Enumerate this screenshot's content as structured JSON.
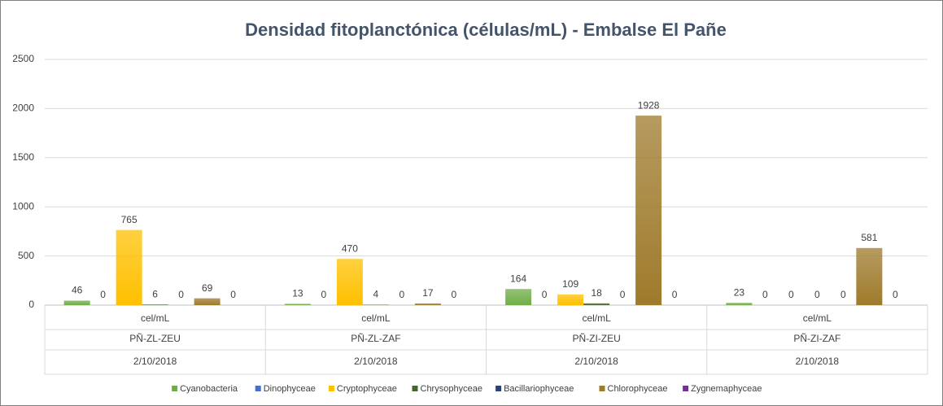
{
  "chart_data": {
    "type": "bar",
    "title": "Densidad fitoplanctónica (células/mL) - Embalse El  Pañe",
    "categories": [
      [
        "cel/mL",
        "PÑ-ZL-ZEU",
        "2/10/2018"
      ],
      [
        "cel/mL",
        "PÑ-ZL-ZAF",
        "2/10/2018"
      ],
      [
        "cel/mL",
        "PÑ-ZI-ZEU",
        "2/10/2018"
      ],
      [
        "cel/mL",
        "PÑ-ZI-ZAF",
        "2/10/2018"
      ]
    ],
    "series": [
      {
        "name": "Cyanobacteria",
        "color": "#70ad47",
        "values": [
          46,
          13,
          164,
          23
        ]
      },
      {
        "name": "Dinophyceae",
        "color": "#4472c4",
        "values": [
          0,
          0,
          0,
          0
        ]
      },
      {
        "name": "Cryptophyceae",
        "color": "#ffc000",
        "values": [
          765,
          470,
          109,
          0
        ]
      },
      {
        "name": "Chrysophyceae",
        "color": "#43682b",
        "values": [
          6,
          4,
          18,
          0
        ]
      },
      {
        "name": "Bacillariophyceae",
        "color": "#264478",
        "values": [
          0,
          0,
          0,
          0
        ]
      },
      {
        "name": "Chlorophyceae",
        "color": "#9e7a2b",
        "values": [
          69,
          17,
          1928,
          581
        ]
      },
      {
        "name": "Zygnemaphyceae",
        "color": "#7030a0",
        "values": [
          0,
          0,
          0,
          0
        ]
      }
    ],
    "ylim": [
      0,
      2500
    ],
    "yticks": [
      0,
      500,
      1000,
      1500,
      2000,
      2500
    ],
    "grid": true,
    "legend": "bottom"
  }
}
